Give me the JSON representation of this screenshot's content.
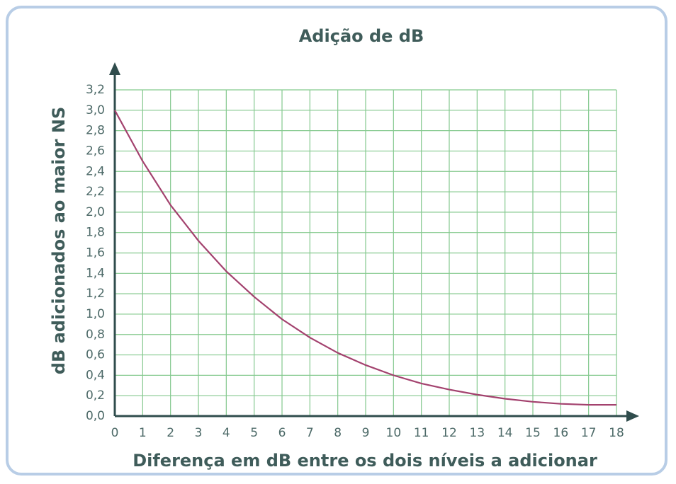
{
  "chart_data": {
    "type": "line",
    "title": "Adição de dB",
    "x_label": "Diferença em dB entre os dois níveis a adicionar",
    "y_label": "dB adicionados ao maior NS",
    "x": [
      0,
      1,
      2,
      3,
      4,
      5,
      6,
      7,
      8,
      9,
      10,
      11,
      12,
      13,
      14,
      15,
      16,
      17,
      18
    ],
    "series": [
      {
        "name": "dB adicionados",
        "color": "#a3426e",
        "values": [
          3.0,
          2.5,
          2.07,
          1.72,
          1.42,
          1.17,
          0.95,
          0.77,
          0.62,
          0.5,
          0.4,
          0.32,
          0.26,
          0.21,
          0.17,
          0.14,
          0.12,
          0.11,
          0.11
        ]
      }
    ],
    "xlim": [
      0,
      18
    ],
    "ylim": [
      0,
      3.2
    ],
    "xticks": [
      0,
      1,
      2,
      3,
      4,
      5,
      6,
      7,
      8,
      9,
      10,
      11,
      12,
      13,
      14,
      15,
      16,
      17,
      18
    ],
    "yticks": [
      {
        "value": 0,
        "label": "0,0"
      },
      {
        "value": 0.2,
        "label": "0,2"
      },
      {
        "value": 0.4,
        "label": "0,4"
      },
      {
        "value": 0.6,
        "label": "0,6"
      },
      {
        "value": 0.8,
        "label": "0,8"
      },
      {
        "value": 1.0,
        "label": "1,0"
      },
      {
        "value": 1.2,
        "label": "1,2"
      },
      {
        "value": 1.4,
        "label": "1,4"
      },
      {
        "value": 1.6,
        "label": "1,6"
      },
      {
        "value": 1.8,
        "label": "1,8"
      },
      {
        "value": 2.0,
        "label": "2,0"
      },
      {
        "value": 2.2,
        "label": "2,2"
      },
      {
        "value": 2.4,
        "label": "2,4"
      },
      {
        "value": 2.6,
        "label": "2,6"
      },
      {
        "value": 2.8,
        "label": "2,8"
      },
      {
        "value": 3.0,
        "label": "3,0"
      },
      {
        "value": 3.2,
        "label": "3,2"
      }
    ],
    "grid": true
  }
}
